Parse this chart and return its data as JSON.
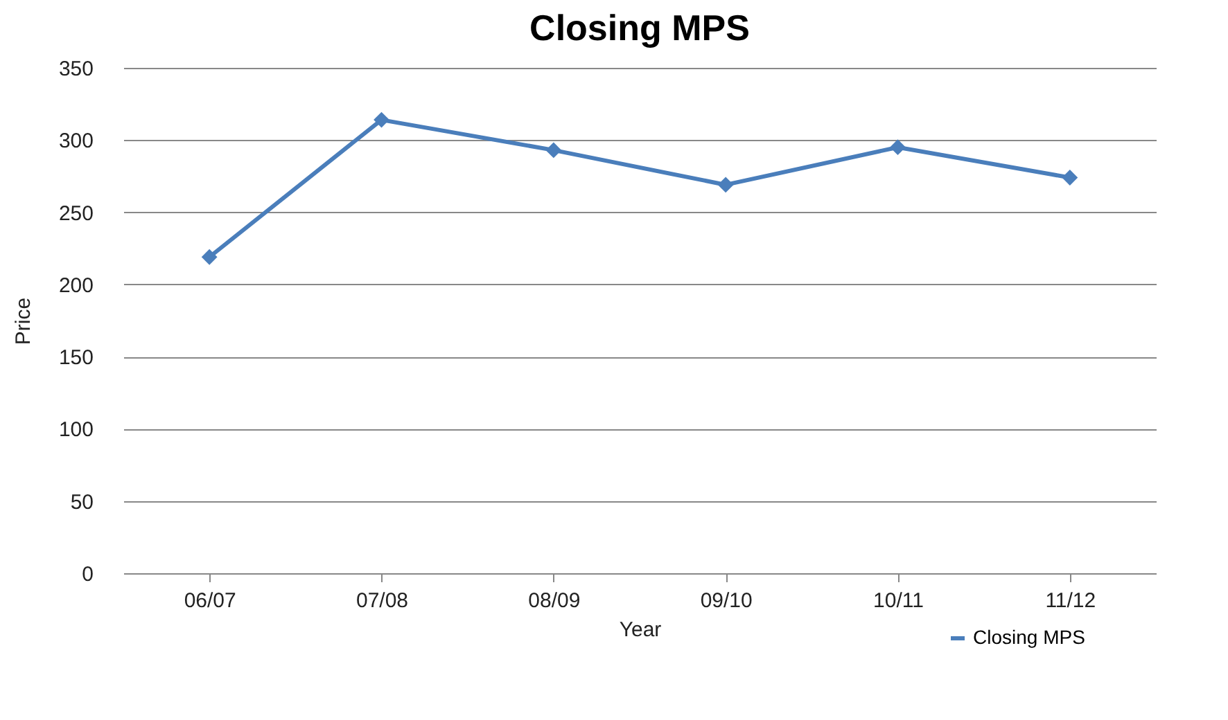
{
  "chart_data": {
    "type": "line",
    "title": "Closing MPS",
    "xlabel": "Year",
    "ylabel": "Price",
    "categories": [
      "06/07",
      "07/08",
      "08/09",
      "09/10",
      "10/11",
      "11/12"
    ],
    "series": [
      {
        "name": "Closing MPS",
        "color": "#4a7ebb",
        "values": [
          219,
          314,
          293,
          269,
          295,
          274
        ]
      }
    ],
    "ylim": [
      0,
      350
    ],
    "yticks": [
      0,
      50,
      100,
      150,
      200,
      250,
      300,
      350
    ],
    "grid": "y",
    "legend": "bottom right",
    "marker": "diamond",
    "line_style": "solid"
  }
}
